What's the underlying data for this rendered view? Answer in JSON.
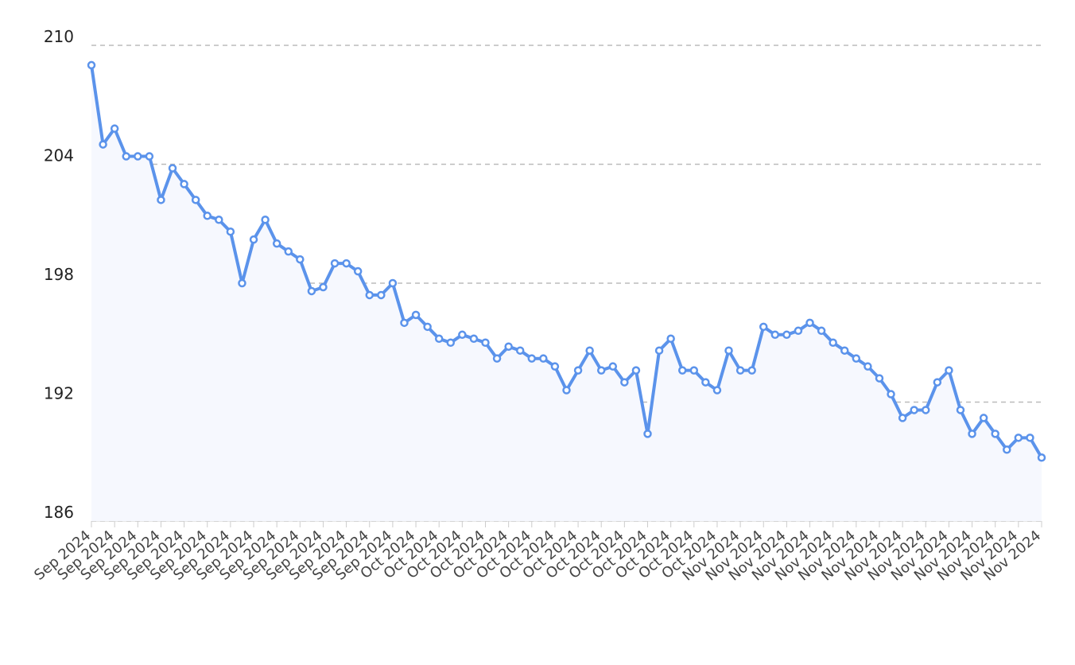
{
  "chart_data": {
    "type": "line",
    "categories": [
      "Sep 2024",
      null,
      "Sep 2024",
      null,
      "Sep 2024",
      null,
      "Sep 2024",
      null,
      "Sep 2024",
      null,
      "Sep 2024",
      null,
      "Sep 2024",
      null,
      "Sep 2024",
      null,
      "Sep 2024",
      null,
      "Sep 2024",
      null,
      "Sep 2024",
      null,
      "Sep 2024",
      null,
      "Sep 2024",
      null,
      "Sep 2024",
      null,
      "Oct 2024",
      null,
      "Oct 2024",
      null,
      "Oct 2024",
      null,
      "Oct 2024",
      null,
      "Oct 2024",
      null,
      "Oct 2024",
      null,
      "Oct 2024",
      null,
      "Oct 2024",
      null,
      "Oct 2024",
      null,
      "Oct 2024",
      null,
      "Oct 2024",
      null,
      "Oct 2024",
      null,
      "Oct 2024",
      null,
      "Oct 2024",
      null,
      "Nov 2024",
      null,
      "Nov 2024",
      null,
      "Nov 2024",
      null,
      "Nov 2024",
      null,
      "Nov 2024",
      null,
      "Nov 2024",
      null,
      "Nov 2024",
      null,
      "Nov 2024",
      null,
      "Nov 2024",
      null,
      "Nov 2024",
      null,
      "Nov 2024",
      null,
      "Nov 2024",
      null,
      "Nov 2024",
      null,
      "Nov 2024"
    ],
    "values": [
      209.0,
      205.0,
      205.8,
      204.4,
      204.4,
      204.4,
      202.2,
      203.8,
      203.0,
      202.2,
      201.4,
      201.2,
      200.6,
      198.0,
      200.2,
      201.2,
      200.0,
      199.6,
      199.2,
      197.6,
      197.8,
      199.0,
      199.0,
      198.6,
      197.4,
      197.4,
      198.0,
      196.0,
      196.4,
      195.8,
      195.2,
      195.0,
      195.4,
      195.2,
      195.0,
      194.2,
      194.8,
      194.6,
      194.2,
      194.2,
      193.8,
      192.6,
      193.6,
      194.6,
      193.6,
      193.8,
      193.0,
      193.6,
      190.4,
      194.6,
      195.2,
      193.6,
      193.6,
      193.0,
      192.6,
      194.6,
      193.6,
      193.6,
      195.8,
      195.4,
      195.4,
      195.6,
      196.0,
      195.6,
      195.0,
      194.6,
      194.2,
      193.8,
      193.2,
      192.4,
      191.2,
      191.6,
      191.6,
      193.0,
      193.6,
      191.6,
      190.4,
      191.2,
      190.4,
      189.6,
      190.2,
      190.2,
      189.2
    ],
    "color": "#5b93eb",
    "area_color": "#f6f8fe",
    "ylim": [
      186,
      210
    ],
    "yticks": [
      186,
      192,
      198,
      204,
      210
    ],
    "grid": true
  }
}
